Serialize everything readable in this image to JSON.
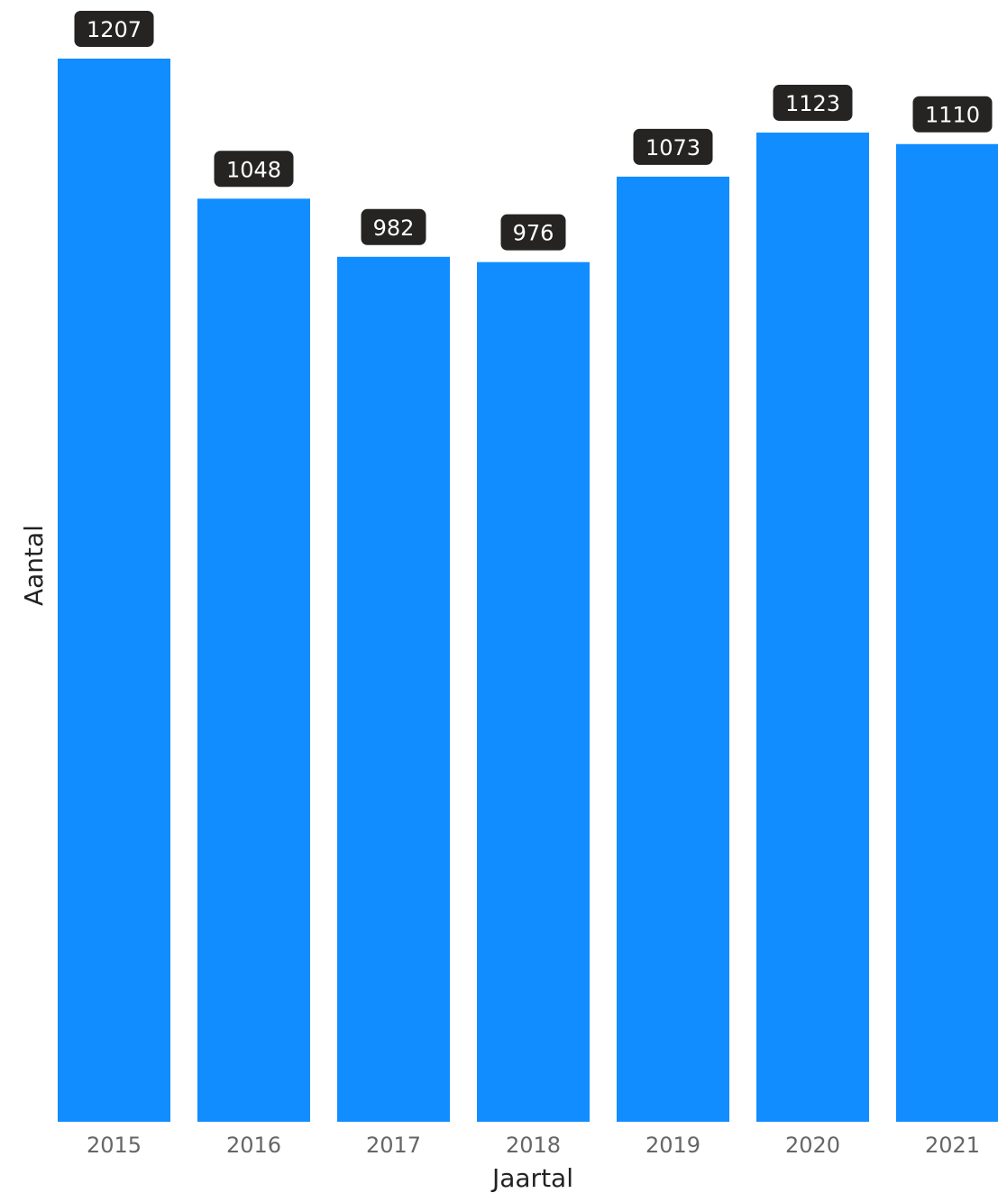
{
  "chart_data": {
    "type": "bar",
    "categories": [
      "2015",
      "2016",
      "2017",
      "2018",
      "2019",
      "2020",
      "2021"
    ],
    "values": [
      1207,
      1048,
      982,
      976,
      1073,
      1123,
      1110
    ],
    "data_labels": [
      "1207",
      "1048",
      "982",
      "976",
      "1073",
      "1123",
      "1110"
    ],
    "xlabel": "Jaartal",
    "ylabel": "Aantal",
    "ylim": [
      0,
      1207
    ],
    "grid": false,
    "legend": "none",
    "bar_color": "#118DFF",
    "label_bg_color": "#252423",
    "label_text_color": "#FFFFFF",
    "tick_color": "#666666",
    "axis_title_color": "#222222"
  }
}
